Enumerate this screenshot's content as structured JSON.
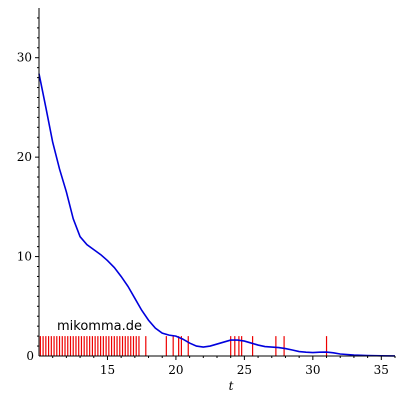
{
  "chart_data": {
    "type": "line",
    "title": "",
    "xlabel": "t",
    "ylabel": "",
    "xlim": [
      10,
      36
    ],
    "ylim": [
      0,
      35
    ],
    "x_ticks": [
      15,
      20,
      25,
      30,
      35
    ],
    "y_ticks": [
      10,
      20,
      30
    ],
    "grid": false,
    "colors": {
      "curve": "#0000dd",
      "rug": "#ee0000",
      "axis": "#000000"
    },
    "series": [
      {
        "x": [
          10.0,
          10.5,
          11.0,
          11.5,
          12.0,
          12.5,
          13.0,
          13.5,
          14.0,
          14.5,
          15.0,
          15.5,
          16.0,
          16.5,
          17.0,
          17.5,
          18.0,
          18.5,
          19.0,
          19.5,
          20.0,
          20.5,
          21.0,
          21.5,
          22.0,
          22.5,
          23.0,
          23.5,
          24.0,
          24.5,
          25.0,
          25.5,
          26.0,
          26.5,
          27.0,
          27.5,
          28.0,
          28.5,
          29.0,
          29.5,
          30.0,
          30.5,
          31.0,
          31.5,
          32.0,
          33.0,
          34.0,
          35.0,
          36.0
        ],
        "y": [
          28.4,
          25.0,
          21.5,
          18.8,
          16.5,
          13.8,
          12.0,
          11.2,
          10.7,
          10.2,
          9.6,
          8.9,
          8.0,
          7.0,
          5.8,
          4.6,
          3.6,
          2.8,
          2.3,
          2.1,
          2.0,
          1.7,
          1.3,
          1.0,
          0.9,
          1.0,
          1.2,
          1.4,
          1.6,
          1.6,
          1.5,
          1.3,
          1.1,
          0.95,
          0.9,
          0.85,
          0.75,
          0.6,
          0.45,
          0.38,
          0.35,
          0.38,
          0.4,
          0.32,
          0.2,
          0.1,
          0.05,
          0.02,
          0.01
        ]
      }
    ],
    "rug": [
      10.1,
      10.3,
      10.5,
      10.7,
      10.9,
      11.1,
      11.3,
      11.5,
      11.7,
      11.9,
      12.1,
      12.3,
      12.5,
      12.7,
      12.9,
      13.1,
      13.3,
      13.5,
      13.7,
      13.9,
      14.1,
      14.3,
      14.5,
      14.7,
      14.9,
      15.1,
      15.3,
      15.5,
      15.7,
      15.9,
      16.1,
      16.3,
      16.5,
      16.7,
      16.9,
      17.1,
      17.3,
      17.8,
      19.3,
      19.8,
      20.2,
      20.4,
      20.9,
      24.0,
      24.3,
      24.6,
      24.8,
      25.6,
      27.3,
      27.9,
      31.0
    ]
  },
  "watermark": "mikomma.de"
}
